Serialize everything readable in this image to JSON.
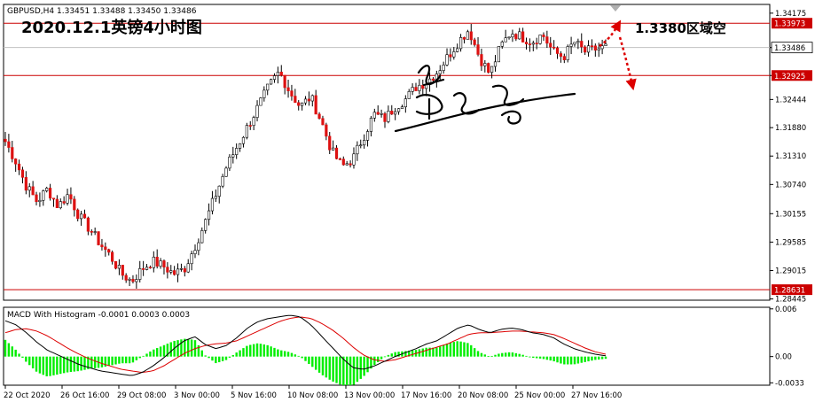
{
  "chart_data": [
    {
      "type": "candlestick",
      "header": "GBPUSD,H4  1.33451 1.33488 1.33450 1.33486",
      "title": "2020.12.1英镑4小时图",
      "annotation": "1.3380区域空",
      "ylim": [
        1.2842,
        1.3435
      ],
      "y_ticks": [
        "1.34175",
        "1.33486",
        "1.32925",
        "1.32444",
        "1.31880",
        "1.31310",
        "1.30740",
        "1.30155",
        "1.29585",
        "1.29015",
        "1.28445"
      ],
      "level_labels": [
        {
          "label": "1.33973",
          "value": 1.33973,
          "style": "red-line"
        },
        {
          "label": "1.33486",
          "value": 1.33486,
          "style": "bid-line"
        },
        {
          "label": "1.32925",
          "value": 1.32925,
          "style": "red-line"
        },
        {
          "label": "1.28631",
          "value": 1.28631,
          "style": "red-line"
        }
      ],
      "x_labels": [
        "22 Oct 2020",
        "26 Oct 16:00",
        "29 Oct 08:00",
        "3 Nov 00:00",
        "5 Nov 16:00",
        "10 Nov 08:00",
        "13 Nov 00:00",
        "17 Nov 16:00",
        "20 Nov 08:00",
        "25 Nov 00:00",
        "27 Nov 16:00"
      ],
      "close_path": [
        1.316,
        1.312,
        1.307,
        1.304,
        1.3065,
        1.303,
        1.3055,
        1.301,
        1.2985,
        1.2955,
        1.293,
        1.2895,
        1.288,
        1.2905,
        1.292,
        1.291,
        1.2895,
        1.2905,
        1.295,
        1.3,
        1.3055,
        1.311,
        1.315,
        1.319,
        1.323,
        1.327,
        1.33,
        1.326,
        1.323,
        1.325,
        1.32,
        1.314,
        1.311,
        1.3125,
        1.317,
        1.3215,
        1.3205,
        1.323,
        1.3245,
        1.327,
        1.328,
        1.33,
        1.333,
        1.336,
        1.3385,
        1.333,
        1.3295,
        1.335,
        1.338,
        1.337,
        1.336,
        1.3375,
        1.334,
        1.333,
        1.336,
        1.334,
        1.3345,
        1.3349
      ],
      "colors": {
        "up": "#26a69a",
        "down": "#dd1111",
        "level_line": "#cc0000",
        "bid_line": "#c0c0c0",
        "annotation_arrow": "#dd0000"
      }
    },
    {
      "type": "macd",
      "header": "MACD With Histogram -0.0001 0.0003 0.0003",
      "ylim": [
        -0.0036,
        0.0062
      ],
      "y_ticks": [
        "0.006",
        "0.00",
        "-0.0033"
      ],
      "macd_path": [
        0.0045,
        0.004,
        0.003,
        0.0018,
        0.0008,
        0.0002,
        -0.0004,
        -0.001,
        -0.0014,
        -0.0018,
        -0.002,
        -0.0022,
        -0.0024,
        -0.002,
        -0.0012,
        -0.0002,
        0.001,
        0.002,
        0.0025,
        0.0015,
        0.001,
        0.0014,
        0.0024,
        0.0036,
        0.0044,
        0.0048,
        0.005,
        0.0052,
        0.005,
        0.004,
        0.0026,
        0.0012,
        -0.0002,
        -0.0014,
        -0.0016,
        -0.0012,
        -0.0006,
        0.0,
        0.0005,
        0.001,
        0.0016,
        0.002,
        0.0028,
        0.0036,
        0.004,
        0.0034,
        0.003,
        0.0034,
        0.0036,
        0.0034,
        0.003,
        0.0028,
        0.0024,
        0.0016,
        0.001,
        0.0006,
        0.0003,
        0.0001
      ],
      "signal_path": [
        0.003,
        0.0034,
        0.0035,
        0.0032,
        0.0026,
        0.0018,
        0.001,
        0.0003,
        -0.0003,
        -0.0008,
        -0.0012,
        -0.0016,
        -0.0018,
        -0.002,
        -0.0018,
        -0.0012,
        -0.0004,
        0.0004,
        0.001,
        0.0014,
        0.0016,
        0.0017,
        0.002,
        0.0026,
        0.0032,
        0.0038,
        0.0044,
        0.0048,
        0.005,
        0.0048,
        0.0042,
        0.0034,
        0.0024,
        0.0012,
        0.0002,
        -0.0004,
        -0.0006,
        -0.0004,
        0.0,
        0.0004,
        0.0008,
        0.0012,
        0.0016,
        0.0022,
        0.0028,
        0.003,
        0.003,
        0.0031,
        0.0032,
        0.0032,
        0.0031,
        0.003,
        0.0028,
        0.0023,
        0.0017,
        0.0011,
        0.0006,
        0.0003
      ],
      "colors": {
        "macd_line": "#000000",
        "signal_line": "#dd0000",
        "histogram": "#00ee00"
      }
    }
  ]
}
